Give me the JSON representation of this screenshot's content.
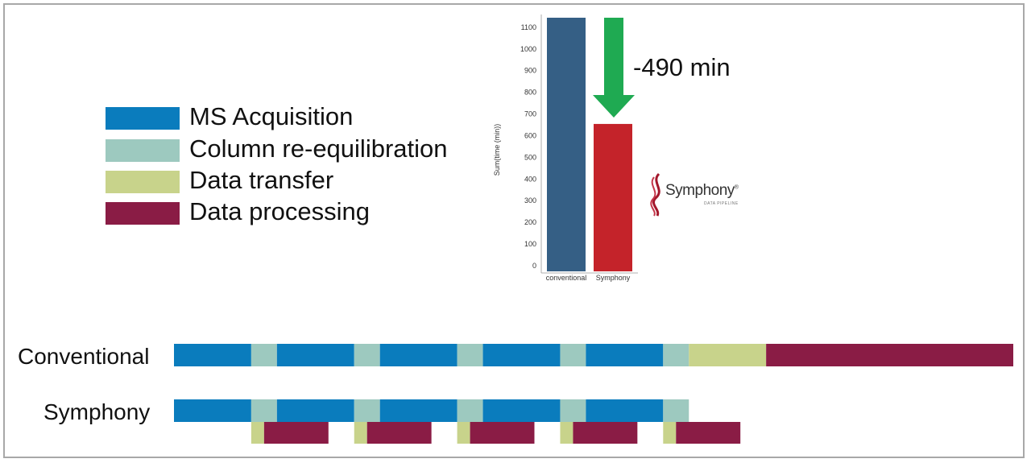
{
  "colors": {
    "ms": "#0a7cbd",
    "col": "#9dc9bf",
    "transfer": "#c8d38b",
    "processing": "#8a1c45",
    "bar_conventional": "#355f85",
    "bar_symphony": "#c4232a",
    "arrow": "#1faa52"
  },
  "legend": [
    {
      "label": "MS Acquisition",
      "color_key": "ms"
    },
    {
      "label": "Column re-equilibration",
      "color_key": "col"
    },
    {
      "label": "Data transfer",
      "color_key": "transfer"
    },
    {
      "label": "Data processing",
      "color_key": "processing"
    }
  ],
  "chart_data": [
    {
      "type": "bar",
      "categories": [
        "conventional",
        "Symphony"
      ],
      "values": [
        1170,
        680
      ],
      "ylabel": "Sum(time (min))",
      "yticks": [
        0,
        100,
        200,
        300,
        400,
        500,
        600,
        700,
        800,
        900,
        1000,
        1100
      ],
      "ylim": [
        0,
        1170
      ],
      "annotation": "-490 min"
    },
    {
      "type": "timeline",
      "time_range": [
        0,
        326
      ],
      "rows": [
        {
          "label": "Conventional",
          "segments": [
            {
              "start": 0,
              "end": 30,
              "kind": "ms"
            },
            {
              "start": 30,
              "end": 40,
              "kind": "col"
            },
            {
              "start": 40,
              "end": 70,
              "kind": "ms"
            },
            {
              "start": 70,
              "end": 80,
              "kind": "col"
            },
            {
              "start": 80,
              "end": 110,
              "kind": "ms"
            },
            {
              "start": 110,
              "end": 120,
              "kind": "col"
            },
            {
              "start": 120,
              "end": 150,
              "kind": "ms"
            },
            {
              "start": 150,
              "end": 160,
              "kind": "col"
            },
            {
              "start": 160,
              "end": 190,
              "kind": "ms"
            },
            {
              "start": 190,
              "end": 200,
              "kind": "col"
            },
            {
              "start": 200,
              "end": 230,
              "kind": "transfer"
            },
            {
              "start": 230,
              "end": 326,
              "kind": "processing"
            }
          ]
        },
        {
          "label": "Symphony",
          "segments": [
            {
              "start": 0,
              "end": 30,
              "kind": "ms"
            },
            {
              "start": 30,
              "end": 40,
              "kind": "col"
            },
            {
              "start": 40,
              "end": 70,
              "kind": "ms"
            },
            {
              "start": 70,
              "end": 80,
              "kind": "col"
            },
            {
              "start": 80,
              "end": 110,
              "kind": "ms"
            },
            {
              "start": 110,
              "end": 120,
              "kind": "col"
            },
            {
              "start": 120,
              "end": 150,
              "kind": "ms"
            },
            {
              "start": 150,
              "end": 160,
              "kind": "col"
            },
            {
              "start": 160,
              "end": 190,
              "kind": "ms"
            },
            {
              "start": 190,
              "end": 200,
              "kind": "col"
            }
          ],
          "sub_segments": [
            {
              "start": 30,
              "end": 35,
              "kind": "transfer"
            },
            {
              "start": 35,
              "end": 60,
              "kind": "processing"
            },
            {
              "start": 70,
              "end": 75,
              "kind": "transfer"
            },
            {
              "start": 75,
              "end": 100,
              "kind": "processing"
            },
            {
              "start": 110,
              "end": 115,
              "kind": "transfer"
            },
            {
              "start": 115,
              "end": 140,
              "kind": "processing"
            },
            {
              "start": 150,
              "end": 155,
              "kind": "transfer"
            },
            {
              "start": 155,
              "end": 180,
              "kind": "processing"
            },
            {
              "start": 190,
              "end": 195,
              "kind": "transfer"
            },
            {
              "start": 195,
              "end": 220,
              "kind": "processing"
            }
          ]
        }
      ]
    }
  ],
  "logo": {
    "name": "Symphony",
    "mark": "®",
    "subtitle": "DATA PIPELINE"
  }
}
